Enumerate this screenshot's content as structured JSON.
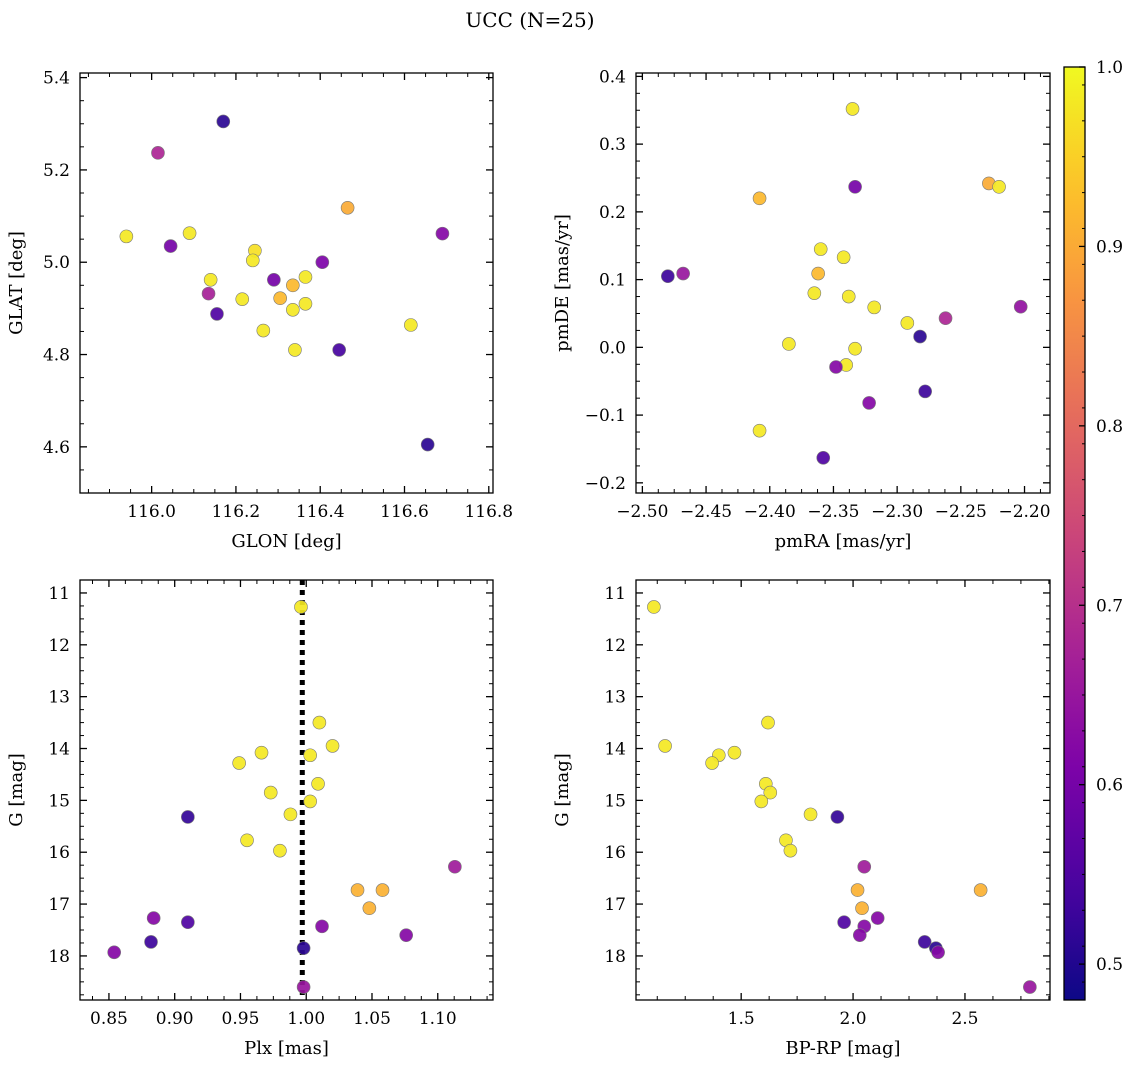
{
  "figure": {
    "title": "UCC (N=25)"
  },
  "colorbar": {
    "cmap": "plasma",
    "range": [
      0.48,
      1.0
    ],
    "ticks": [
      0.5,
      0.6,
      0.7,
      0.8,
      0.9,
      1.0
    ],
    "tick_labels": [
      "0.5",
      "0.6",
      "0.7",
      "0.8",
      "0.9",
      "1.0"
    ]
  },
  "chart_data": [
    {
      "type": "scatter",
      "xlabel": "GLON [deg]",
      "ylabel": "GLAT [deg]",
      "xlim": [
        115.83,
        116.81
      ],
      "ylim": [
        4.5,
        5.41
      ],
      "xticks": [
        116.0,
        116.2,
        116.4,
        116.6,
        116.8
      ],
      "xtick_labels": [
        "116.0",
        "116.2",
        "116.4",
        "116.6",
        "116.8"
      ],
      "yticks": [
        4.6,
        4.8,
        5.0,
        5.2,
        5.4
      ],
      "ytick_labels": [
        "4.6",
        "4.8",
        "5.0",
        "5.2",
        "5.4"
      ],
      "y_inverted": false,
      "points": [
        {
          "x": 116.17,
          "y": 5.305,
          "c": 0.51
        },
        {
          "x": 116.015,
          "y": 5.237,
          "c": 0.68
        },
        {
          "x": 116.465,
          "y": 5.118,
          "c": 0.9
        },
        {
          "x": 115.94,
          "y": 5.056,
          "c": 0.98
        },
        {
          "x": 116.09,
          "y": 5.063,
          "c": 0.98
        },
        {
          "x": 116.045,
          "y": 5.035,
          "c": 0.6
        },
        {
          "x": 116.245,
          "y": 5.025,
          "c": 0.97
        },
        {
          "x": 116.24,
          "y": 5.004,
          "c": 0.98
        },
        {
          "x": 116.405,
          "y": 5.0,
          "c": 0.61
        },
        {
          "x": 116.69,
          "y": 5.062,
          "c": 0.62
        },
        {
          "x": 116.365,
          "y": 4.968,
          "c": 0.98
        },
        {
          "x": 116.14,
          "y": 4.962,
          "c": 0.98
        },
        {
          "x": 116.29,
          "y": 4.962,
          "c": 0.6
        },
        {
          "x": 116.335,
          "y": 4.95,
          "c": 0.92
        },
        {
          "x": 116.135,
          "y": 4.932,
          "c": 0.67
        },
        {
          "x": 116.305,
          "y": 4.922,
          "c": 0.92
        },
        {
          "x": 116.215,
          "y": 4.92,
          "c": 0.98
        },
        {
          "x": 116.365,
          "y": 4.91,
          "c": 0.98
        },
        {
          "x": 116.335,
          "y": 4.897,
          "c": 0.98
        },
        {
          "x": 116.155,
          "y": 4.888,
          "c": 0.55
        },
        {
          "x": 116.615,
          "y": 4.864,
          "c": 0.98
        },
        {
          "x": 116.265,
          "y": 4.852,
          "c": 0.98
        },
        {
          "x": 116.34,
          "y": 4.81,
          "c": 0.98
        },
        {
          "x": 116.445,
          "y": 4.81,
          "c": 0.54
        },
        {
          "x": 116.655,
          "y": 4.605,
          "c": 0.51
        }
      ]
    },
    {
      "type": "scatter",
      "xlabel": "pmRA [mas/yr]",
      "ylabel": "pmDE [mas/yr]",
      "xlim": [
        -2.505,
        -2.18
      ],
      "ylim": [
        -0.215,
        0.405
      ],
      "xticks": [
        -2.5,
        -2.45,
        -2.4,
        -2.35,
        -2.3,
        -2.25,
        -2.2
      ],
      "xtick_labels": [
        "−2.50",
        "−2.45",
        "−2.40",
        "−2.35",
        "−2.30",
        "−2.25",
        "−2.20"
      ],
      "yticks": [
        -0.2,
        -0.1,
        0.0,
        0.1,
        0.2,
        0.3,
        0.4
      ],
      "ytick_labels": [
        "−0.2",
        "−0.1",
        "0.0",
        "0.1",
        "0.2",
        "0.3",
        "0.4"
      ],
      "y_inverted": false,
      "points": [
        {
          "x": -2.335,
          "y": 0.352,
          "c": 0.98
        },
        {
          "x": -2.228,
          "y": 0.242,
          "c": 0.9
        },
        {
          "x": -2.22,
          "y": 0.237,
          "c": 0.98
        },
        {
          "x": -2.333,
          "y": 0.237,
          "c": 0.6
        },
        {
          "x": -2.408,
          "y": 0.22,
          "c": 0.92
        },
        {
          "x": -2.36,
          "y": 0.145,
          "c": 0.98
        },
        {
          "x": -2.342,
          "y": 0.133,
          "c": 0.98
        },
        {
          "x": -2.362,
          "y": 0.109,
          "c": 0.92
        },
        {
          "x": -2.48,
          "y": 0.105,
          "c": 0.53
        },
        {
          "x": -2.468,
          "y": 0.109,
          "c": 0.65
        },
        {
          "x": -2.365,
          "y": 0.08,
          "c": 0.98
        },
        {
          "x": -2.338,
          "y": 0.075,
          "c": 0.98
        },
        {
          "x": -2.318,
          "y": 0.059,
          "c": 0.98
        },
        {
          "x": -2.203,
          "y": 0.06,
          "c": 0.64
        },
        {
          "x": -2.292,
          "y": 0.036,
          "c": 0.98
        },
        {
          "x": -2.262,
          "y": 0.043,
          "c": 0.68
        },
        {
          "x": -2.282,
          "y": 0.016,
          "c": 0.51
        },
        {
          "x": -2.385,
          "y": 0.005,
          "c": 0.98
        },
        {
          "x": -2.333,
          "y": -0.002,
          "c": 0.98
        },
        {
          "x": -2.34,
          "y": -0.026,
          "c": 0.98
        },
        {
          "x": -2.348,
          "y": -0.029,
          "c": 0.62
        },
        {
          "x": -2.278,
          "y": -0.065,
          "c": 0.53
        },
        {
          "x": -2.322,
          "y": -0.082,
          "c": 0.62
        },
        {
          "x": -2.408,
          "y": -0.123,
          "c": 0.98
        },
        {
          "x": -2.358,
          "y": -0.163,
          "c": 0.55
        }
      ]
    },
    {
      "type": "scatter",
      "xlabel": "Plx [mas]",
      "ylabel": "G [mag]",
      "xlim": [
        0.828,
        1.142
      ],
      "ylim": [
        18.85,
        10.75
      ],
      "xticks": [
        0.85,
        0.9,
        0.95,
        1.0,
        1.05,
        1.1
      ],
      "xtick_labels": [
        "0.85",
        "0.90",
        "0.95",
        "1.00",
        "1.05",
        "1.10"
      ],
      "yticks": [
        11,
        12,
        13,
        14,
        15,
        16,
        17,
        18
      ],
      "ytick_labels": [
        "11",
        "12",
        "13",
        "14",
        "15",
        "16",
        "17",
        "18"
      ],
      "y_inverted": true,
      "vline": {
        "x": 0.997,
        "style": "dotted"
      },
      "points": [
        {
          "x": 0.996,
          "y": 11.27,
          "c": 0.98
        },
        {
          "x": 1.01,
          "y": 13.5,
          "c": 0.98
        },
        {
          "x": 1.02,
          "y": 13.95,
          "c": 0.98
        },
        {
          "x": 0.966,
          "y": 14.08,
          "c": 0.98
        },
        {
          "x": 1.003,
          "y": 14.13,
          "c": 0.98
        },
        {
          "x": 0.949,
          "y": 14.28,
          "c": 0.98
        },
        {
          "x": 1.009,
          "y": 14.68,
          "c": 0.98
        },
        {
          "x": 0.973,
          "y": 14.85,
          "c": 0.98
        },
        {
          "x": 1.003,
          "y": 15.02,
          "c": 0.98
        },
        {
          "x": 0.988,
          "y": 15.27,
          "c": 0.98
        },
        {
          "x": 0.91,
          "y": 15.32,
          "c": 0.52
        },
        {
          "x": 0.955,
          "y": 15.77,
          "c": 0.98
        },
        {
          "x": 0.98,
          "y": 15.97,
          "c": 0.98
        },
        {
          "x": 1.113,
          "y": 16.28,
          "c": 0.66
        },
        {
          "x": 1.039,
          "y": 16.73,
          "c": 0.91
        },
        {
          "x": 1.058,
          "y": 16.73,
          "c": 0.91
        },
        {
          "x": 1.048,
          "y": 17.08,
          "c": 0.91
        },
        {
          "x": 0.884,
          "y": 17.27,
          "c": 0.62
        },
        {
          "x": 0.91,
          "y": 17.35,
          "c": 0.55
        },
        {
          "x": 1.012,
          "y": 17.43,
          "c": 0.62
        },
        {
          "x": 1.076,
          "y": 17.6,
          "c": 0.62
        },
        {
          "x": 0.882,
          "y": 17.73,
          "c": 0.53
        },
        {
          "x": 0.998,
          "y": 17.85,
          "c": 0.51
        },
        {
          "x": 0.854,
          "y": 17.93,
          "c": 0.62
        },
        {
          "x": 0.998,
          "y": 18.6,
          "c": 0.65
        }
      ]
    },
    {
      "type": "scatter",
      "xlabel": "BP-RP [mag]",
      "ylabel": "G [mag]",
      "xlim": [
        1.03,
        2.88
      ],
      "ylim": [
        18.85,
        10.75
      ],
      "xticks": [
        1.5,
        2.0,
        2.5
      ],
      "xtick_labels": [
        "1.5",
        "2.0",
        "2.5"
      ],
      "yticks": [
        11,
        12,
        13,
        14,
        15,
        16,
        17,
        18
      ],
      "ytick_labels": [
        "11",
        "12",
        "13",
        "14",
        "15",
        "16",
        "17",
        "18"
      ],
      "y_inverted": true,
      "points": [
        {
          "x": 1.11,
          "y": 11.27,
          "c": 0.98
        },
        {
          "x": 1.62,
          "y": 13.5,
          "c": 0.98
        },
        {
          "x": 1.16,
          "y": 13.95,
          "c": 0.98
        },
        {
          "x": 1.47,
          "y": 14.08,
          "c": 0.98
        },
        {
          "x": 1.4,
          "y": 14.13,
          "c": 0.98
        },
        {
          "x": 1.37,
          "y": 14.28,
          "c": 0.98
        },
        {
          "x": 1.61,
          "y": 14.68,
          "c": 0.98
        },
        {
          "x": 1.63,
          "y": 14.85,
          "c": 0.98
        },
        {
          "x": 1.59,
          "y": 15.02,
          "c": 0.98
        },
        {
          "x": 1.81,
          "y": 15.27,
          "c": 0.98
        },
        {
          "x": 1.93,
          "y": 15.32,
          "c": 0.52
        },
        {
          "x": 1.7,
          "y": 15.77,
          "c": 0.98
        },
        {
          "x": 1.72,
          "y": 15.97,
          "c": 0.98
        },
        {
          "x": 2.05,
          "y": 16.28,
          "c": 0.66
        },
        {
          "x": 2.02,
          "y": 16.73,
          "c": 0.91
        },
        {
          "x": 2.57,
          "y": 16.73,
          "c": 0.91
        },
        {
          "x": 2.04,
          "y": 17.08,
          "c": 0.91
        },
        {
          "x": 2.11,
          "y": 17.27,
          "c": 0.62
        },
        {
          "x": 1.96,
          "y": 17.35,
          "c": 0.55
        },
        {
          "x": 2.05,
          "y": 17.43,
          "c": 0.62
        },
        {
          "x": 2.03,
          "y": 17.6,
          "c": 0.62
        },
        {
          "x": 2.32,
          "y": 17.73,
          "c": 0.53
        },
        {
          "x": 2.37,
          "y": 17.85,
          "c": 0.51
        },
        {
          "x": 2.38,
          "y": 17.93,
          "c": 0.62
        },
        {
          "x": 2.79,
          "y": 18.6,
          "c": 0.65
        }
      ]
    }
  ]
}
